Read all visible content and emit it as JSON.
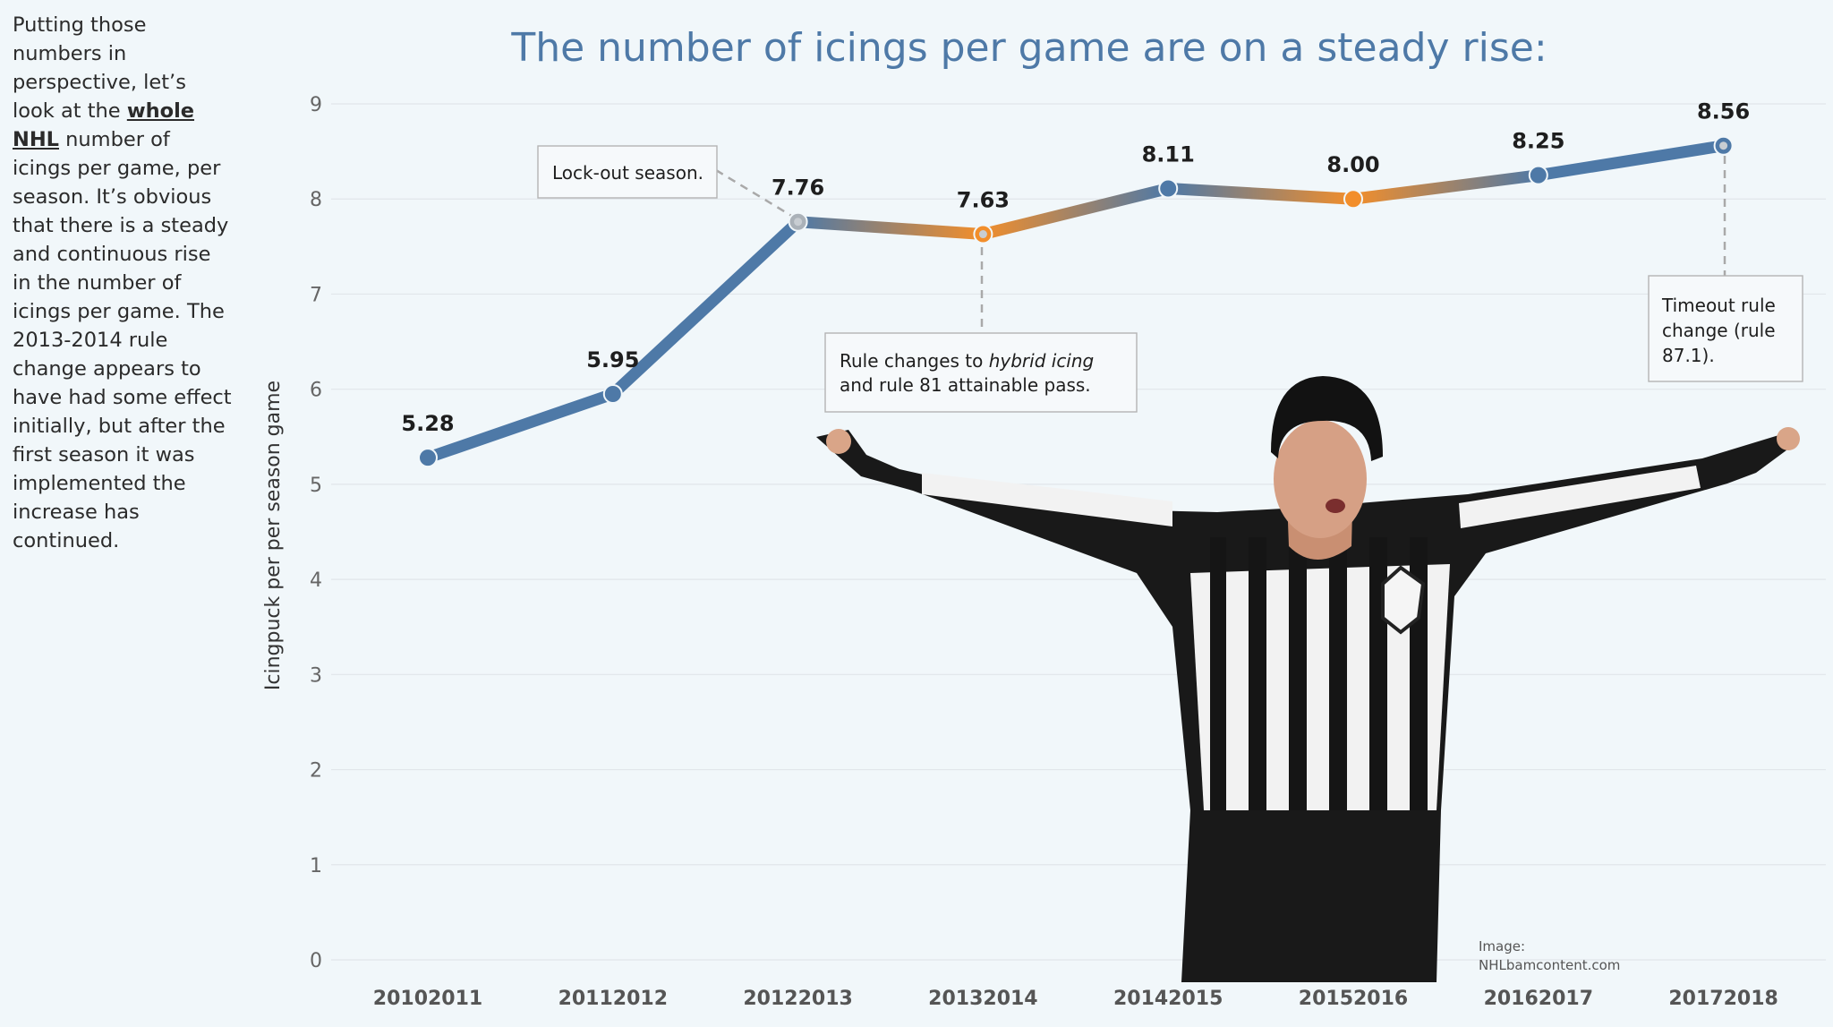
{
  "sidebar": {
    "text_before": "Putting those numbers in perspective, let’s look at the ",
    "highlight": "whole NHL",
    "text_after": " number of icings per game, per season. It’s obvious that there is a steady and continuous rise in the number of icings per game. The 2013-2014 rule change appears to have had some effect initially, but after the first season it was implemented the increase has continued."
  },
  "chart_data": {
    "type": "line",
    "title": "The number of icings per game are on a steady rise:",
    "xlabel": "",
    "ylabel": "Icingpuck per per season game",
    "ylim": [
      0,
      9
    ],
    "yticks": [
      "0",
      "1",
      "2",
      "3",
      "4",
      "5",
      "6",
      "7",
      "8",
      "9"
    ],
    "categories": [
      "20102011",
      "20112012",
      "20122013",
      "20132014",
      "20142015",
      "20152016",
      "20162017",
      "20172018"
    ],
    "values": [
      5.28,
      5.95,
      7.76,
      7.63,
      8.11,
      8.0,
      8.25,
      8.56
    ],
    "value_labels": [
      "5.28",
      "5.95",
      "7.76",
      "7.63",
      "8.11",
      "8.00",
      "8.25",
      "8.56"
    ],
    "grid": true,
    "series_colors": {
      "blue": "#4e79a7",
      "orange": "#f28e2b"
    },
    "annotations": {
      "lockout": "Lock-out season.",
      "rule_pre": "Rule changes to ",
      "rule_em": "hybrid icing",
      "rule_line2": "and rule 81 attainable pass.",
      "timeout_1": "Timeout rule",
      "timeout_2": "change (rule",
      "timeout_3": "87.1)."
    },
    "image_credit_1": "Image:",
    "image_credit_2": "NHLbamcontent.com"
  }
}
